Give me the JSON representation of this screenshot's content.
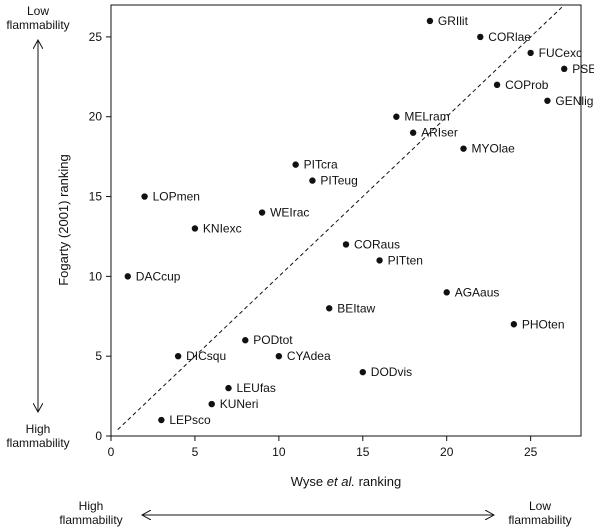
{
  "chart_data": {
    "type": "scatter",
    "xlabel": "Wyse et al. ranking",
    "ylabel": "Fogarty (2001) ranking",
    "xlim": [
      0,
      28
    ],
    "ylim": [
      0,
      27
    ],
    "xticks": [
      0,
      5,
      10,
      15,
      20,
      25
    ],
    "yticks": [
      0,
      5,
      10,
      15,
      20,
      25
    ],
    "grid": false,
    "reference_line": "y = x (dashed)",
    "points": [
      {
        "label": "GRIlit",
        "x": 19,
        "y": 26
      },
      {
        "label": "CORlae",
        "x": 22,
        "y": 25
      },
      {
        "label": "FUCexc",
        "x": 25,
        "y": 24
      },
      {
        "label": "PSEarb",
        "x": 27,
        "y": 23
      },
      {
        "label": "COProb",
        "x": 23,
        "y": 22
      },
      {
        "label": "GENlig",
        "x": 26,
        "y": 21
      },
      {
        "label": "MELram",
        "x": 17,
        "y": 20
      },
      {
        "label": "ARIser",
        "x": 18,
        "y": 19
      },
      {
        "label": "MYOlae",
        "x": 21,
        "y": 18
      },
      {
        "label": "PITcra",
        "x": 11,
        "y": 17
      },
      {
        "label": "PITeug",
        "x": 12,
        "y": 16
      },
      {
        "label": "LOPmen",
        "x": 2,
        "y": 15
      },
      {
        "label": "WEIrac",
        "x": 9,
        "y": 14
      },
      {
        "label": "KNIexc",
        "x": 5,
        "y": 13
      },
      {
        "label": "CORaus",
        "x": 14,
        "y": 12
      },
      {
        "label": "PITten",
        "x": 16,
        "y": 11
      },
      {
        "label": "DACcup",
        "x": 1,
        "y": 10
      },
      {
        "label": "AGAaus",
        "x": 20,
        "y": 9
      },
      {
        "label": "BEItaw",
        "x": 13,
        "y": 8
      },
      {
        "label": "PHOten",
        "x": 24,
        "y": 7
      },
      {
        "label": "PODtot",
        "x": 8,
        "y": 6
      },
      {
        "label": "DICsqu",
        "x": 4,
        "y": 5
      },
      {
        "label": "CYAdea",
        "x": 10,
        "y": 5
      },
      {
        "label": "DODvis",
        "x": 15,
        "y": 4
      },
      {
        "label": "LEUfas",
        "x": 7,
        "y": 3
      },
      {
        "label": "KUNeri",
        "x": 6,
        "y": 2
      },
      {
        "label": "LEPsco",
        "x": 3,
        "y": 1
      }
    ]
  },
  "annotations": {
    "y_top": [
      "Low",
      "flammability"
    ],
    "y_bottom": [
      "High",
      "flammability"
    ],
    "x_left": [
      "High",
      "flammability"
    ],
    "x_right": [
      "Low",
      "flammability"
    ]
  }
}
